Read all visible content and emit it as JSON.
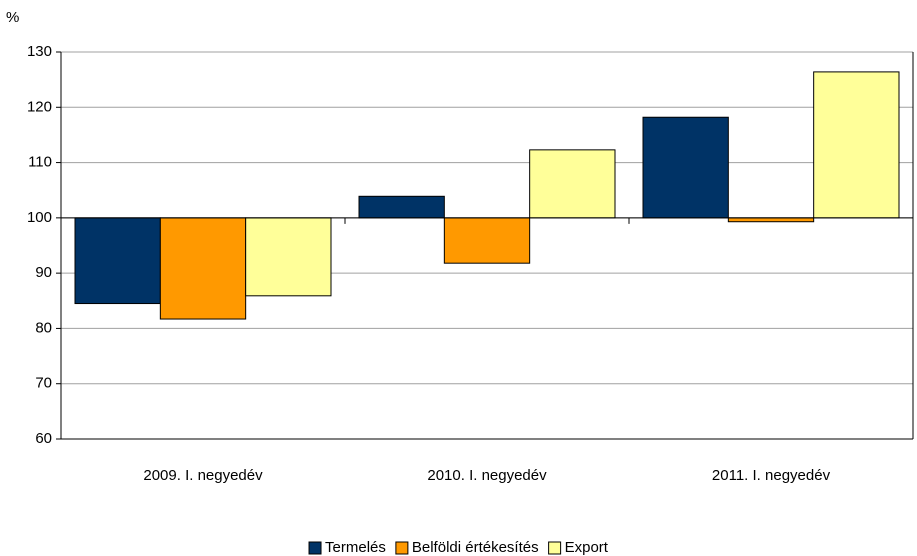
{
  "chart_data": {
    "type": "bar",
    "y_unit": "%",
    "categories": [
      "2009. I. negyedév",
      "2010. I. negyedév",
      "2011. I. negyedév"
    ],
    "series": [
      {
        "name": "Termelés",
        "color": "#003366",
        "values": [
          84.5,
          103.9,
          118.2
        ]
      },
      {
        "name": "Belföldi értékesítés",
        "color": "#ff9900",
        "values": [
          81.7,
          91.8,
          99.3
        ]
      },
      {
        "name": "Export",
        "color": "#ffff99",
        "values": [
          85.9,
          112.3,
          126.4
        ]
      }
    ],
    "baseline": 100,
    "ylim": [
      60,
      130
    ],
    "yticks": [
      60,
      70,
      80,
      90,
      100,
      110,
      120,
      130
    ],
    "grid": true,
    "legend": "bottom"
  }
}
